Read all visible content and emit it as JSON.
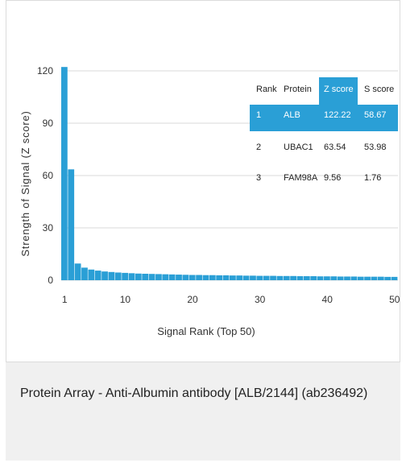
{
  "chart_data": {
    "type": "bar",
    "xlabel": "Signal Rank (Top 50)",
    "ylabel": "Strength of Signal (Z score)",
    "ylim": [
      0,
      120
    ],
    "yticks": [
      0,
      30,
      60,
      90,
      120
    ],
    "xticks": [
      1,
      10,
      20,
      30,
      40,
      50
    ],
    "grid": true,
    "bar_color": "#2a9fd6",
    "x": [
      1,
      2,
      3,
      4,
      5,
      6,
      7,
      8,
      9,
      10,
      11,
      12,
      13,
      14,
      15,
      16,
      17,
      18,
      19,
      20,
      21,
      22,
      23,
      24,
      25,
      26,
      27,
      28,
      29,
      30,
      31,
      32,
      33,
      34,
      35,
      36,
      37,
      38,
      39,
      40,
      41,
      42,
      43,
      44,
      45,
      46,
      47,
      48,
      49,
      50
    ],
    "values": [
      122.22,
      63.54,
      9.56,
      7.2,
      6.1,
      5.5,
      5.0,
      4.7,
      4.4,
      4.2,
      4.0,
      3.8,
      3.7,
      3.6,
      3.5,
      3.4,
      3.3,
      3.2,
      3.1,
      3.0,
      3.0,
      2.9,
      2.9,
      2.8,
      2.8,
      2.7,
      2.7,
      2.6,
      2.6,
      2.5,
      2.5,
      2.5,
      2.4,
      2.4,
      2.4,
      2.3,
      2.3,
      2.3,
      2.2,
      2.2,
      2.2,
      2.1,
      2.1,
      2.1,
      2.0,
      2.0,
      2.0,
      2.0,
      1.9,
      1.9
    ]
  },
  "table": {
    "headers": [
      "Rank",
      "Protein",
      "Z score",
      "S score"
    ],
    "rows": [
      [
        "1",
        "ALB",
        "122.22",
        "58.67"
      ],
      [
        "2",
        "UBAC1",
        "63.54",
        "53.98"
      ],
      [
        "3",
        "FAM98A",
        "9.56",
        "1.76"
      ]
    ],
    "highlight_color": "#2a9fd6"
  },
  "caption": {
    "text": "Protein Array - Anti-Albumin antibody [ALB/2144] (ab236492)"
  }
}
